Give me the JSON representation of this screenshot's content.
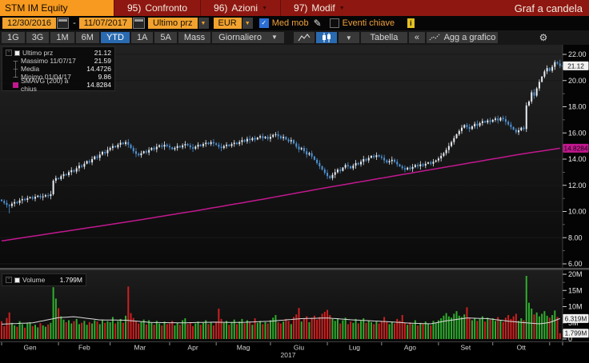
{
  "titlebar": {
    "ticker": "STM IM Equity",
    "confronto_num": "95)",
    "confronto_label": "Confronto",
    "azioni_num": "96)",
    "azioni_label": "Azioni",
    "modif_num": "97)",
    "modif_label": "Modif",
    "view_title": "Graf a candela"
  },
  "controls": {
    "date_from": "12/30/2016",
    "dash": "-",
    "date_to": "11/07/2017",
    "price_field": "Ultimo prz",
    "currency": "EUR",
    "med_mob_label": "Med mob",
    "med_mob_checked": true,
    "eventi_label": "Eventi chiave",
    "eventi_checked": false,
    "info_glyph": "i"
  },
  "toolbar": {
    "ranges": [
      "1G",
      "3G",
      "1M",
      "6M",
      "YTD",
      "1A",
      "5A",
      "Mass"
    ],
    "active_range": "YTD",
    "frequency": "Giornaliero",
    "table_label": "Tabella",
    "collapse_label": "«",
    "add_chart_label": "Agg a grafico"
  },
  "legend": {
    "items": [
      {
        "marker": "square-white",
        "label": "Ultimo prz",
        "value": "21.12"
      },
      {
        "marker": "high-tick",
        "label": "Massimo 11/07/17",
        "value": "21.59"
      },
      {
        "marker": "cross",
        "label": "Media",
        "value": "14.4726"
      },
      {
        "marker": "low-tick",
        "label": "Minimo 01/04/17",
        "value": "9.86"
      },
      {
        "marker": "square-magenta",
        "label": "SMAVG (200) a chius",
        "value": "14.8284"
      }
    ]
  },
  "volume_legend": {
    "label": "Volume",
    "value": "1.799M"
  },
  "chart_data": {
    "type": "candlestick+volume",
    "instrument": "STM IM Equity",
    "period": "12/30/2016 - 11/07/2017",
    "frequency": "Giornaliero",
    "currency": "EUR",
    "stats": {
      "last": 21.12,
      "high": 21.59,
      "high_date": "11/07/17",
      "mean": 14.4726,
      "low": 9.86,
      "low_date": "01/04/17",
      "smavg200": 14.8284,
      "last_volume_m": 1.799,
      "volume_avg_m": 6.319
    },
    "open_first": 10.9,
    "closes": [
      10.8,
      10.65,
      10.5,
      10.42,
      10.6,
      10.72,
      10.65,
      10.85,
      10.95,
      10.88,
      11.02,
      11.1,
      10.98,
      11.12,
      11.2,
      11.08,
      11.15,
      11.25,
      11.18,
      11.32,
      12.35,
      12.55,
      12.48,
      12.7,
      12.85,
      12.78,
      13.0,
      13.15,
      13.05,
      13.3,
      13.5,
      13.42,
      13.65,
      13.85,
      13.75,
      14.0,
      14.2,
      14.1,
      14.35,
      14.55,
      14.45,
      14.7,
      14.85,
      15.0,
      14.9,
      15.1,
      15.25,
      15.15,
      15.3,
      15.1,
      14.85,
      14.6,
      14.4,
      14.3,
      14.45,
      14.6,
      14.5,
      14.7,
      14.85,
      14.75,
      14.95,
      15.05,
      14.95,
      15.1,
      15.0,
      14.9,
      14.75,
      14.85,
      15.0,
      14.9,
      15.05,
      15.15,
      15.05,
      14.9,
      14.8,
      14.95,
      15.1,
      15.0,
      15.15,
      15.25,
      15.15,
      15.3,
      15.2,
      15.1,
      14.95,
      14.85,
      15.0,
      15.1,
      15.0,
      15.15,
      15.25,
      15.15,
      15.3,
      15.45,
      15.35,
      15.55,
      15.45,
      15.6,
      15.5,
      15.65,
      15.75,
      15.6,
      15.7,
      15.55,
      15.7,
      15.85,
      15.9,
      15.75,
      15.6,
      15.7,
      15.5,
      15.35,
      15.45,
      15.2,
      14.95,
      14.75,
      14.85,
      14.6,
      14.35,
      14.45,
      14.2,
      13.95,
      13.7,
      13.45,
      13.2,
      12.95,
      12.7,
      12.55,
      12.8,
      13.0,
      13.2,
      13.1,
      13.35,
      13.55,
      13.45,
      13.3,
      13.5,
      13.7,
      13.6,
      13.8,
      14.0,
      13.9,
      14.1,
      14.25,
      14.15,
      14.3,
      14.2,
      14.1,
      13.9,
      13.75,
      13.85,
      13.95,
      13.8,
      13.6,
      13.45,
      13.3,
      13.2,
      13.35,
      13.25,
      13.4,
      13.55,
      13.45,
      13.6,
      13.5,
      13.65,
      13.75,
      13.65,
      13.8,
      13.9,
      14.05,
      14.25,
      14.45,
      14.7,
      15.0,
      15.3,
      15.6,
      15.9,
      16.15,
      16.4,
      16.6,
      16.45,
      16.3,
      16.5,
      16.7,
      16.55,
      16.75,
      16.9,
      16.8,
      16.95,
      16.85,
      17.0,
      17.1,
      16.95,
      17.15,
      17.05,
      16.85,
      16.65,
      16.45,
      16.25,
      16.05,
      16.2,
      16.4,
      16.3,
      18.1,
      18.4,
      19.1,
      18.85,
      19.4,
      19.9,
      20.3,
      20.7,
      20.95,
      20.75,
      21.05,
      21.4,
      21.3,
      21.12
    ],
    "volumes_m": [
      5.5,
      4.0,
      6.5,
      8.2,
      5.0,
      4.2,
      3.8,
      5.5,
      4.6,
      3.5,
      4.8,
      5.2,
      4.0,
      4.4,
      3.6,
      4.9,
      4.2,
      3.8,
      4.5,
      5.0,
      16.0,
      12.5,
      9.5,
      7.0,
      6.0,
      5.2,
      5.8,
      4.8,
      5.5,
      6.2,
      4.6,
      5.0,
      5.6,
      4.4,
      5.2,
      4.8,
      5.8,
      5.4,
      4.6,
      6.0,
      5.0,
      5.5,
      5.2,
      6.8,
      4.8,
      5.5,
      6.2,
      5.0,
      7.2,
      16.2,
      8.0,
      6.5,
      5.5,
      4.8,
      5.2,
      6.0,
      4.5,
      5.8,
      5.0,
      4.4,
      5.6,
      4.8,
      4.2,
      5.4,
      4.6,
      4.8,
      5.6,
      4.2,
      5.0,
      4.4,
      5.8,
      6.4,
      4.6,
      5.2,
      4.0,
      4.8,
      5.4,
      4.4,
      5.0,
      5.8,
      4.6,
      5.2,
      4.2,
      5.4,
      9.4,
      6.2,
      5.0,
      5.6,
      4.4,
      5.2,
      6.0,
      4.6,
      5.4,
      6.2,
      4.8,
      5.8,
      5.2,
      4.4,
      6.4,
      5.0,
      5.6,
      4.6,
      5.2,
      4.8,
      5.8,
      6.6,
      7.4,
      5.2,
      4.8,
      5.4,
      6.2,
      5.6,
      4.6,
      6.8,
      7.6,
      9.6,
      5.4,
      6.4,
      7.0,
      5.2,
      6.6,
      7.2,
      6.0,
      6.8,
      7.8,
      8.4,
      9.0,
      7.4,
      6.2,
      5.6,
      6.4,
      4.8,
      5.8,
      6.6,
      4.6,
      5.4,
      5.0,
      6.2,
      4.8,
      5.6,
      6.4,
      5.0,
      5.8,
      5.2,
      4.6,
      5.4,
      4.8,
      5.6,
      6.8,
      5.2,
      4.6,
      5.4,
      4.8,
      6.2,
      5.6,
      7.4,
      5.0,
      4.4,
      5.2,
      4.6,
      5.8,
      4.2,
      5.0,
      4.6,
      5.4,
      4.8,
      4.2,
      5.6,
      5.0,
      5.8,
      6.4,
      7.2,
      8.0,
      7.0,
      6.6,
      7.8,
      8.6,
      7.2,
      6.8,
      7.6,
      9.8,
      6.6,
      5.8,
      6.4,
      5.6,
      6.2,
      7.0,
      5.4,
      6.6,
      6.0,
      6.4,
      5.6,
      6.8,
      5.8,
      5.2,
      6.6,
      7.4,
      6.2,
      7.0,
      7.8,
      5.6,
      6.4,
      5.8,
      19.5,
      11.2,
      9.4,
      7.6,
      8.2,
      7.0,
      7.8,
      8.6,
      7.2,
      6.6,
      7.4,
      8.8,
      6.8,
      1.799
    ],
    "wick_overrides": {
      "3": {
        "low": 9.86
      },
      "214": {
        "high": 21.55
      },
      "216": {
        "high": 21.59
      }
    },
    "smavg_points": [
      [
        0,
        7.75
      ],
      [
        25,
        8.5
      ],
      [
        50,
        9.25
      ],
      [
        75,
        10.05
      ],
      [
        100,
        10.9
      ],
      [
        125,
        11.8
      ],
      [
        150,
        12.65
      ],
      [
        175,
        13.5
      ],
      [
        200,
        14.35
      ],
      [
        216,
        14.8284
      ]
    ],
    "volma_points": [
      [
        0,
        4.6
      ],
      [
        12,
        5.0
      ],
      [
        22,
        6.6
      ],
      [
        28,
        6.9
      ],
      [
        38,
        5.9
      ],
      [
        48,
        5.8
      ],
      [
        58,
        5.1
      ],
      [
        70,
        5.0
      ],
      [
        82,
        5.2
      ],
      [
        92,
        5.1
      ],
      [
        104,
        5.5
      ],
      [
        116,
        6.3
      ],
      [
        126,
        6.5
      ],
      [
        136,
        5.9
      ],
      [
        148,
        5.4
      ],
      [
        158,
        4.9
      ],
      [
        166,
        4.7
      ],
      [
        172,
        5.6
      ],
      [
        180,
        6.5
      ],
      [
        188,
        6.3
      ],
      [
        196,
        5.5
      ],
      [
        203,
        5.0
      ],
      [
        208,
        4.7
      ],
      [
        212,
        5.1
      ],
      [
        216,
        6.319
      ]
    ],
    "price_axis": {
      "min": 6,
      "max": 22,
      "major_ticks": [
        {
          "v": 22,
          "t": "22.00"
        },
        {
          "v": 20,
          "t": "20.00"
        },
        {
          "v": 18,
          "t": "18.00"
        },
        {
          "v": 16,
          "t": "16.00"
        },
        {
          "v": 14,
          "t": "14.00"
        },
        {
          "v": 12,
          "t": "12.00"
        },
        {
          "v": 10,
          "t": "10.00"
        },
        {
          "v": 8,
          "t": "8.00"
        },
        {
          "v": 6,
          "t": "6.00"
        }
      ],
      "minor_ticks": [
        21,
        19,
        17,
        15,
        13,
        11,
        9,
        7
      ]
    },
    "volume_axis": {
      "max": 20,
      "major_ticks": [
        {
          "v": 20,
          "t": "20M"
        },
        {
          "v": 15,
          "t": "15M"
        },
        {
          "v": 10,
          "t": "10M"
        },
        {
          "v": 5,
          "t": "5M"
        },
        {
          "v": 0,
          "t": "0"
        }
      ],
      "minor_ticks": [
        17.5,
        12.5,
        7.5,
        2.5
      ]
    },
    "x_axis": {
      "months": [
        "Gen",
        "Feb",
        "Mar",
        "Apr",
        "Mag",
        "Giu",
        "Lug",
        "Ago",
        "Set",
        "Ott"
      ],
      "month_start_days": [
        0,
        22,
        42,
        65,
        83,
        104,
        126,
        147,
        169,
        190,
        212
      ],
      "year": "2017"
    },
    "badges": {
      "price": [
        {
          "v": 21.12,
          "t": "21.12",
          "bg": "#f0f0f0",
          "fg": "#101010"
        },
        {
          "v": 14.8284,
          "t": "14.8284",
          "bg": "#c2188f",
          "fg": "#14040e"
        }
      ],
      "volume": [
        {
          "v": 6.319,
          "t": "6.319M",
          "bg": "#f0f0f0",
          "fg": "#101010"
        },
        {
          "v": 1.799,
          "t": "1.799M",
          "bg": "#f0f0f0",
          "fg": "#101010"
        }
      ]
    },
    "colors": {
      "up": "#e9edf2",
      "down": "#4f94d8",
      "vol_up": "#2fae2f",
      "vol_down": "#cf2020",
      "smavg": "#c2188f",
      "vol_ma": "#dcdcdc",
      "accent_orange": "#f2a22e",
      "topbar_red": "#8e1711",
      "active_blue": "#2a6ab0"
    }
  }
}
